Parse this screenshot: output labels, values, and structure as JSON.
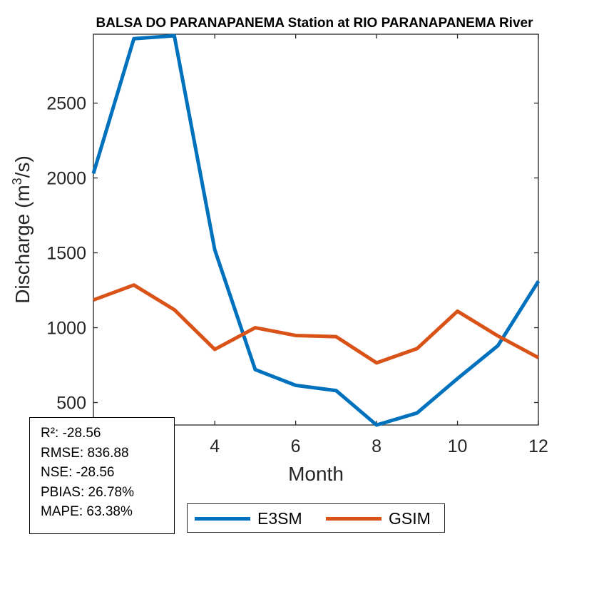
{
  "chart_data": {
    "type": "line",
    "title": "BALSA DO PARANAPANEMA  Station at  RIO PARANAPANEMA  River",
    "xlabel": "Month",
    "ylabel": "Discharge (m³/s)",
    "ylabel_base": "Discharge (m",
    "ylabel_sup": "3",
    "ylabel_tail": "/s)",
    "xlim": [
      1,
      12
    ],
    "ylim": [
      350,
      2960
    ],
    "xticks": [
      4,
      6,
      8,
      10,
      12
    ],
    "yticks": [
      500,
      1000,
      1500,
      2000,
      2500
    ],
    "x": [
      1,
      2,
      3,
      4,
      5,
      6,
      7,
      8,
      9,
      10,
      11,
      12
    ],
    "series": [
      {
        "name": "E3SM",
        "color": "#0072BD",
        "values": [
          2030,
          2930,
          2950,
          1520,
          720,
          615,
          580,
          350,
          430,
          660,
          880,
          1310
        ]
      },
      {
        "name": "GSIM",
        "color": "#D95319",
        "values": [
          1185,
          1285,
          1120,
          855,
          1000,
          948,
          940,
          765,
          860,
          1110,
          945,
          800
        ]
      }
    ],
    "grid": false,
    "legend_position": "bottom-outside"
  },
  "stats": {
    "r2": "R²: -28.56",
    "rmse": "RMSE: 836.88",
    "nse": "NSE: -28.56",
    "pbias": "PBIAS: 26.78%",
    "mape": "MAPE: 63.38%"
  }
}
